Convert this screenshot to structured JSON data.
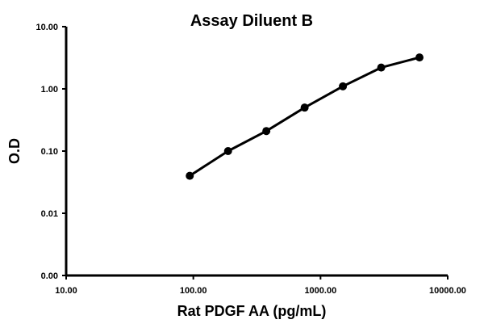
{
  "chart_data": {
    "type": "line",
    "title": "Assay Diluent B",
    "xlabel": "Rat PDGF AA (pg/mL)",
    "ylabel": "O.D",
    "x_scale": "log",
    "y_scale": "log",
    "xlim": [
      10,
      10000
    ],
    "ylim": [
      0.001,
      10
    ],
    "x_ticks": [
      10,
      100,
      1000,
      10000
    ],
    "x_tick_labels": [
      "10.00",
      "100.00",
      "1000.00",
      "10000.00"
    ],
    "y_ticks": [
      0.001,
      0.01,
      0.1,
      1,
      10
    ],
    "y_tick_labels": [
      "0.00",
      "0.01",
      "0.10",
      "1.00",
      "10.00"
    ],
    "grid": false,
    "legend": "none",
    "series": [
      {
        "x": [
          93.75,
          187.5,
          375,
          750,
          1500,
          3000,
          6000
        ],
        "y": [
          0.04,
          0.1,
          0.21,
          0.5,
          1.1,
          2.2,
          3.2
        ],
        "color": "#000000",
        "marker": "circle"
      }
    ]
  }
}
